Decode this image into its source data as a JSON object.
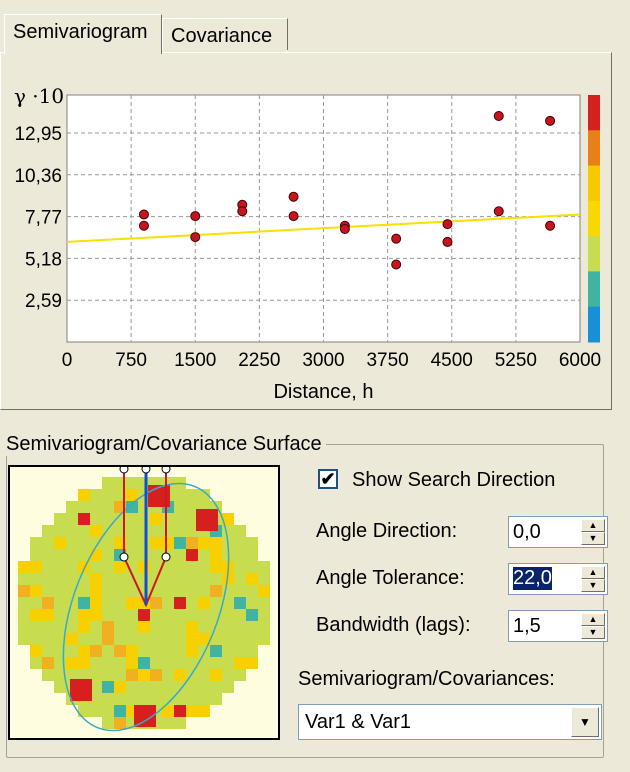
{
  "tabs": [
    {
      "label": "Semivariogram",
      "active": true
    },
    {
      "label": "Covariance",
      "active": false
    }
  ],
  "chart_data": {
    "type": "scatter",
    "y_unit_label": "γ ·10",
    "xlabel": "Distance, h",
    "x_ticks": [
      "0",
      "750",
      "1500",
      "2250",
      "3000",
      "3750",
      "4500",
      "5250",
      "6000"
    ],
    "y_ticks": [
      "2,59",
      "5,18",
      "7,77",
      "10,36",
      "12,95"
    ],
    "xlim": [
      0,
      6000
    ],
    "ylim": [
      0,
      15.3
    ],
    "grid": true,
    "points": [
      {
        "x": 900,
        "y": 7.9
      },
      {
        "x": 900,
        "y": 7.2
      },
      {
        "x": 1500,
        "y": 7.8
      },
      {
        "x": 1500,
        "y": 6.5
      },
      {
        "x": 2050,
        "y": 8.5
      },
      {
        "x": 2050,
        "y": 8.1
      },
      {
        "x": 2650,
        "y": 9.0
      },
      {
        "x": 2650,
        "y": 7.8
      },
      {
        "x": 3250,
        "y": 7.2
      },
      {
        "x": 3250,
        "y": 7.0
      },
      {
        "x": 3850,
        "y": 6.4
      },
      {
        "x": 3850,
        "y": 4.8
      },
      {
        "x": 4450,
        "y": 7.3
      },
      {
        "x": 4450,
        "y": 6.2
      },
      {
        "x": 5050,
        "y": 14.0
      },
      {
        "x": 5050,
        "y": 8.1
      },
      {
        "x": 5650,
        "y": 13.7
      },
      {
        "x": 5650,
        "y": 7.2
      }
    ],
    "model_line": {
      "x": [
        0,
        6000
      ],
      "y": [
        6.2,
        7.9
      ]
    },
    "colorbar": [
      "#D62020",
      "#E8801A",
      "#F8C800",
      "#F8D800",
      "#C8DC50",
      "#40B4A0",
      "#1890D8"
    ]
  },
  "surface": {
    "title": "Semivariogram/Covariance Surface",
    "show_search_direction_label": "Show Search Direction",
    "show_search_direction_checked": true,
    "angle_direction_label": "Angle Direction:",
    "angle_direction_value": "0,0",
    "angle_tolerance_label": "Angle Tolerance:",
    "angle_tolerance_value": "22,0",
    "bandwidth_label": "Bandwidth (lags):",
    "bandwidth_value": "1,5",
    "combo_label": "Semivariogram/Covariances:",
    "combo_value": "Var1 & Var1"
  }
}
